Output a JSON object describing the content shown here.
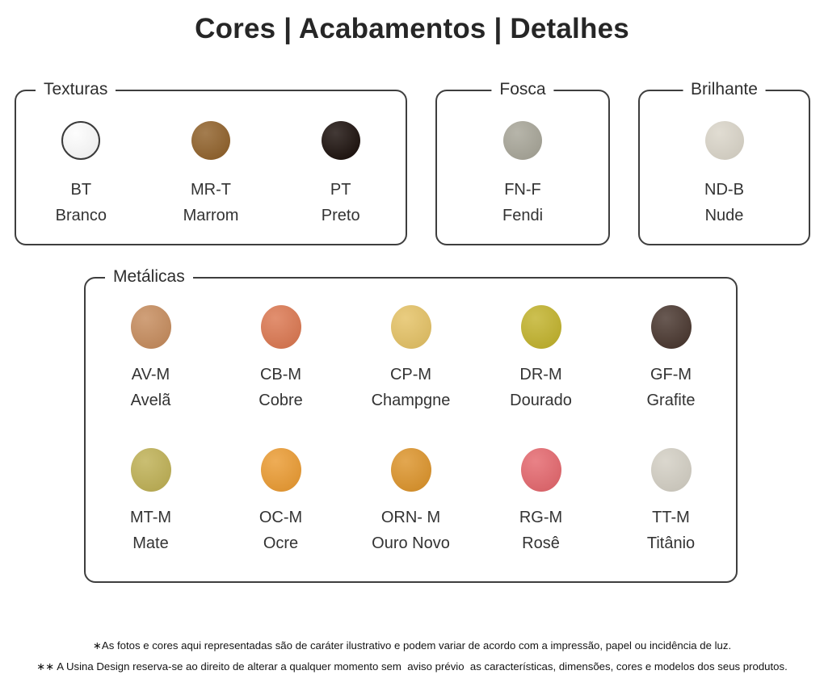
{
  "page": {
    "title": "Cores | Acabamentos | Detalhes",
    "footnote1": "∗As fotos e cores aqui representadas são de caráter ilustrativo e podem variar de acordo com a impressão, papel ou incidência de luz.",
    "footnote2": "∗∗ A Usina Design reserva-se ao direito de alterar a qualquer momento sem  aviso prévio  as características, dimensões, cores e modelos dos seus produtos."
  },
  "groups": {
    "texturas": {
      "label": "Texturas",
      "swatches": [
        {
          "code": "BT",
          "name": "Branco",
          "color": "#fdfdfd",
          "outline": "#3a3a3a"
        },
        {
          "code": "MR-T",
          "name": "Marrom",
          "color": "#92642e"
        },
        {
          "code": "PT",
          "name": "Preto",
          "color": "#1f1410"
        }
      ]
    },
    "fosca": {
      "label": "Fosca",
      "swatches": [
        {
          "code": "FN-F",
          "name": "Fendi",
          "color": "#a9a79a"
        }
      ]
    },
    "brilhante": {
      "label": "Brilhante",
      "swatches": [
        {
          "code": "ND-B",
          "name": "Nude",
          "color": "#dbd6ca"
        }
      ]
    },
    "metalicas": {
      "label": "Metálicas",
      "rows": [
        [
          {
            "code": "AV-M",
            "name": "Avelã",
            "color": "#c78e60"
          },
          {
            "code": "CB-M",
            "name": "Cobre",
            "color": "#dc7a54"
          },
          {
            "code": "CP-M",
            "name": "Champgne",
            "color": "#e5c368"
          },
          {
            "code": "DR-M",
            "name": "Dourado",
            "color": "#c3b430"
          },
          {
            "code": "GF-M",
            "name": "Grafite",
            "color": "#4c3a32"
          }
        ],
        [
          {
            "code": "MT-M",
            "name": "Mate",
            "color": "#c0b258"
          },
          {
            "code": "OC-M",
            "name": "Ocre",
            "color": "#eb9d36"
          },
          {
            "code": "ORN- M",
            "name": "Ouro Novo",
            "color": "#dd962f"
          },
          {
            "code": "RG-M",
            "name": "Rosê",
            "color": "#e56a70"
          },
          {
            "code": "TT-M",
            "name": "Titânio",
            "color": "#d4d0c5"
          }
        ]
      ]
    }
  }
}
